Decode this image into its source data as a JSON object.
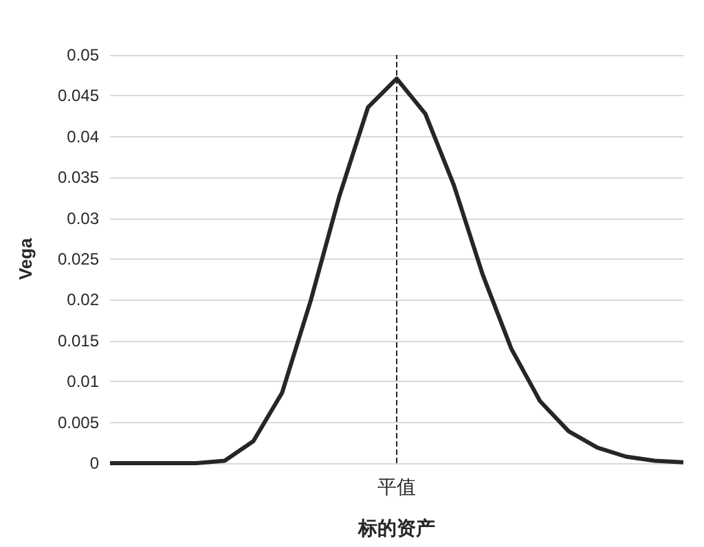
{
  "chart_data": {
    "type": "line",
    "xlabel": "标的资产",
    "ylabel": "Vega",
    "categories": [
      null,
      null,
      null,
      null,
      null,
      null,
      null,
      null,
      null,
      null,
      "平值",
      null,
      null,
      null,
      null,
      null,
      null,
      null,
      null,
      null,
      null
    ],
    "series": [
      {
        "color": "#262626",
        "values": [
          0,
          0,
          0,
          0,
          0.0003,
          0.0027,
          0.0086,
          0.0199,
          0.0327,
          0.0436,
          0.0471,
          0.0428,
          0.034,
          0.0231,
          0.014,
          0.0076,
          0.0039,
          0.0019,
          0.0008,
          0.0003,
          0.0001
        ]
      }
    ],
    "ylim": [
      0,
      0.05
    ],
    "yticks": [
      0,
      0.005,
      0.01,
      0.015,
      0.02,
      0.025,
      0.03,
      0.035,
      0.04,
      0.045,
      0.05
    ],
    "grid": "y",
    "marker": "none",
    "line_style": "solid",
    "ref_lines": [
      {
        "axis": "x",
        "value": "平值",
        "color": "#262626",
        "line_style": "dashed"
      }
    ]
  }
}
